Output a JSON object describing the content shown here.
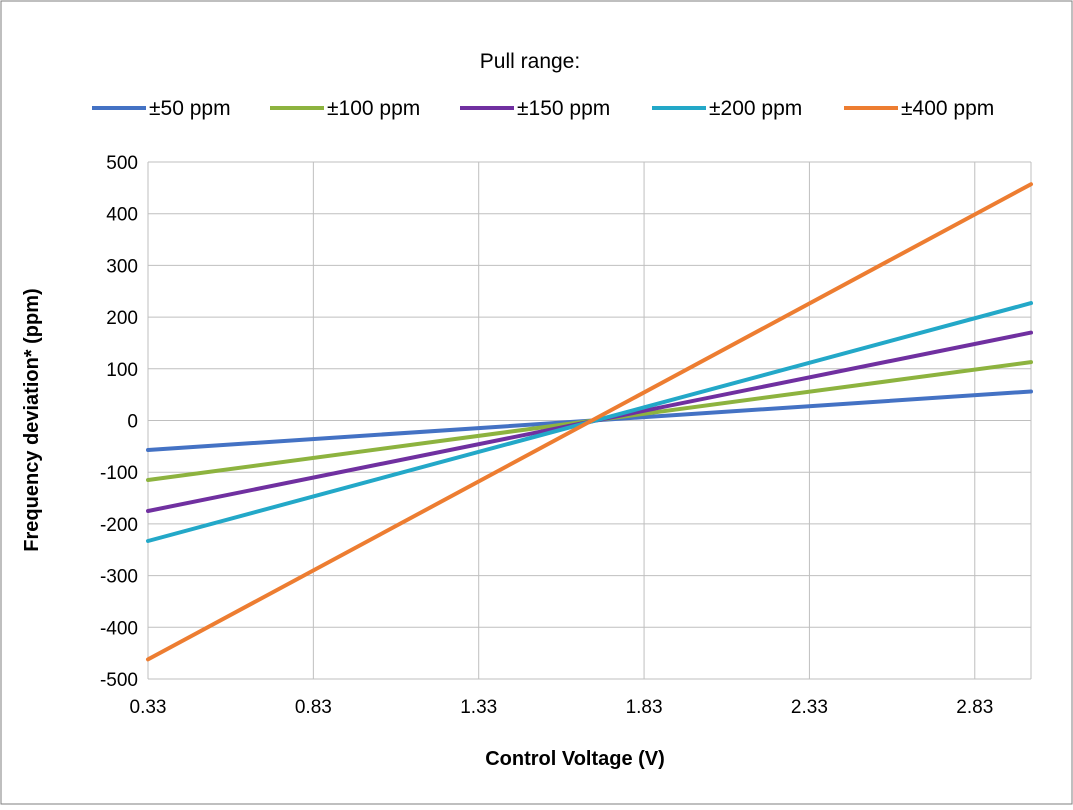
{
  "chart_data": {
    "type": "line",
    "legend_title": "Pull range:",
    "legend_position": "top",
    "xlabel": "Control Voltage (V)",
    "ylabel": "Frequency deviation* (ppm)",
    "xlim": [
      0.33,
      3.0
    ],
    "ylim": [
      -500,
      500
    ],
    "x_ticks": [
      "0.33",
      "0.83",
      "1.33",
      "1.83",
      "2.33",
      "2.83"
    ],
    "y_ticks": [
      "500",
      "400",
      "300",
      "200",
      "100",
      "0",
      "-100",
      "-200",
      "-300",
      "-400",
      "-500"
    ],
    "grid": true,
    "series": [
      {
        "name": "±50 ppm",
        "color": "#4472C4",
        "x": [
          0.33,
          3.0
        ],
        "y": [
          -57,
          56
        ]
      },
      {
        "name": "±100 ppm",
        "color": "#8DB33F",
        "x": [
          0.33,
          3.0
        ],
        "y": [
          -115,
          113
        ]
      },
      {
        "name": "±150 ppm",
        "color": "#7030A0",
        "x": [
          0.33,
          3.0
        ],
        "y": [
          -175,
          170
        ]
      },
      {
        "name": "±200 ppm",
        "color": "#23A8C8",
        "x": [
          0.33,
          3.0
        ],
        "y": [
          -233,
          227
        ]
      },
      {
        "name": "±400 ppm",
        "color": "#ED7D31",
        "x": [
          0.33,
          3.0
        ],
        "y": [
          -462,
          457
        ]
      }
    ]
  }
}
